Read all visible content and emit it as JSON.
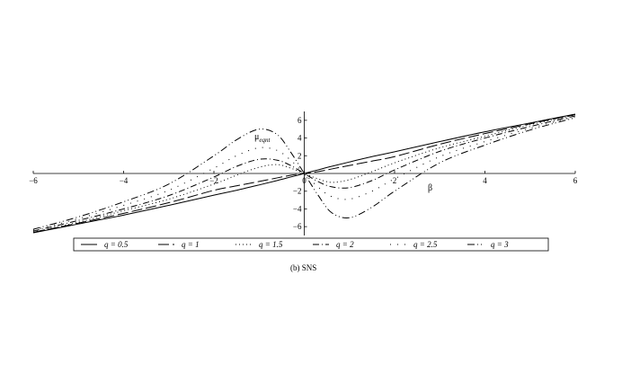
{
  "chart_data": {
    "type": "line",
    "title": "",
    "caption": "(b) SNS",
    "xlabel": "β",
    "ylabel": "μ",
    "ylabel_subscript": "eqnt",
    "xlim": [
      -6,
      6
    ],
    "ylim": [
      -7,
      7
    ],
    "x_ticks": [
      -6,
      -4,
      -2,
      0,
      2,
      4,
      6
    ],
    "x_tick_labels": [
      "−6",
      "−4",
      "−2",
      "0",
      "2",
      "4",
      "6"
    ],
    "y_ticks": [
      -6,
      -4,
      -2,
      2,
      4,
      6
    ],
    "y_tick_labels": [
      "−6",
      "−4",
      "−2",
      "2",
      "4",
      "6"
    ],
    "legend_position": "bottom",
    "series": [
      {
        "name": "q = 0.5",
        "q": 0.5,
        "dash": "solid",
        "x": [
          -6,
          -5,
          -4,
          -3,
          -2,
          -1.5,
          -1,
          -0.6,
          -0.3,
          0,
          0.3,
          0.6,
          1,
          1.5,
          2,
          3,
          4,
          5,
          6
        ],
        "y": [
          -6.7,
          -5.7,
          -4.7,
          -3.6,
          -2.45,
          -1.9,
          -1.3,
          -0.8,
          -0.4,
          0,
          0.4,
          0.8,
          1.3,
          1.9,
          2.45,
          3.6,
          4.7,
          5.7,
          6.7
        ]
      },
      {
        "name": "q = 1",
        "q": 1,
        "dash": "longdash",
        "x": [
          -6,
          -5,
          -4,
          -3,
          -2,
          -1.5,
          -1,
          -0.6,
          -0.3,
          0,
          0.3,
          0.6,
          1,
          1.5,
          2,
          3,
          4,
          5,
          6
        ],
        "y": [
          -6.65,
          -5.6,
          -4.5,
          -3.3,
          -1.9,
          -1.4,
          -0.9,
          -0.5,
          -0.2,
          0,
          0.2,
          0.5,
          0.9,
          1.4,
          1.9,
          3.3,
          4.5,
          5.6,
          6.65
        ]
      },
      {
        "name": "q = 1.5",
        "q": 1.5,
        "dash": "dotted",
        "x": [
          -6,
          -5,
          -4,
          -3,
          -2,
          -1.5,
          -1,
          -0.6,
          -0.3,
          0,
          0.3,
          0.6,
          1,
          1.5,
          2,
          3,
          4,
          5,
          6
        ],
        "y": [
          -6.6,
          -5.5,
          -4.2,
          -2.9,
          -1.2,
          -0.2,
          0.7,
          1.0,
          0.6,
          0,
          -0.6,
          -1.0,
          -0.7,
          0.2,
          1.2,
          2.9,
          4.2,
          5.5,
          6.6
        ]
      },
      {
        "name": "q = 2",
        "q": 2,
        "dash": "dashdot",
        "x": [
          -6,
          -5,
          -4,
          -3,
          -2,
          -1.5,
          -1,
          -0.6,
          -0.3,
          0,
          0.3,
          0.6,
          1,
          1.5,
          2,
          3,
          4,
          5,
          6
        ],
        "y": [
          -6.5,
          -5.3,
          -4.0,
          -2.5,
          -0.4,
          0.8,
          1.6,
          1.5,
          0.9,
          0,
          -0.9,
          -1.5,
          -1.6,
          -0.8,
          0.4,
          2.5,
          4.0,
          5.3,
          6.5
        ]
      },
      {
        "name": "q = 2.5",
        "q": 2.5,
        "dash": "sparse",
        "x": [
          -6,
          -5,
          -4,
          -3,
          -2,
          -1.5,
          -1,
          -0.6,
          -0.3,
          0,
          0.3,
          0.6,
          1,
          1.5,
          2,
          3,
          4,
          5,
          6
        ],
        "y": [
          -6.4,
          -5.1,
          -3.6,
          -1.9,
          0.6,
          2.0,
          2.9,
          2.6,
          1.5,
          0,
          -1.5,
          -2.6,
          -2.9,
          -2.0,
          -0.6,
          1.9,
          3.6,
          5.1,
          6.4
        ]
      },
      {
        "name": "q = 3",
        "q": 3,
        "dash": "dashdotdot",
        "x": [
          -6,
          -5,
          -4,
          -3,
          -2,
          -1.5,
          -1,
          -0.6,
          -0.3,
          0,
          0.3,
          0.6,
          1,
          1.5,
          2,
          3,
          4,
          5,
          6
        ],
        "y": [
          -6.3,
          -4.9,
          -3.2,
          -1.2,
          2.0,
          3.8,
          5.0,
          4.4,
          2.4,
          0,
          -2.4,
          -4.4,
          -5.0,
          -3.8,
          -2.0,
          1.2,
          3.2,
          4.9,
          6.3
        ]
      }
    ]
  }
}
